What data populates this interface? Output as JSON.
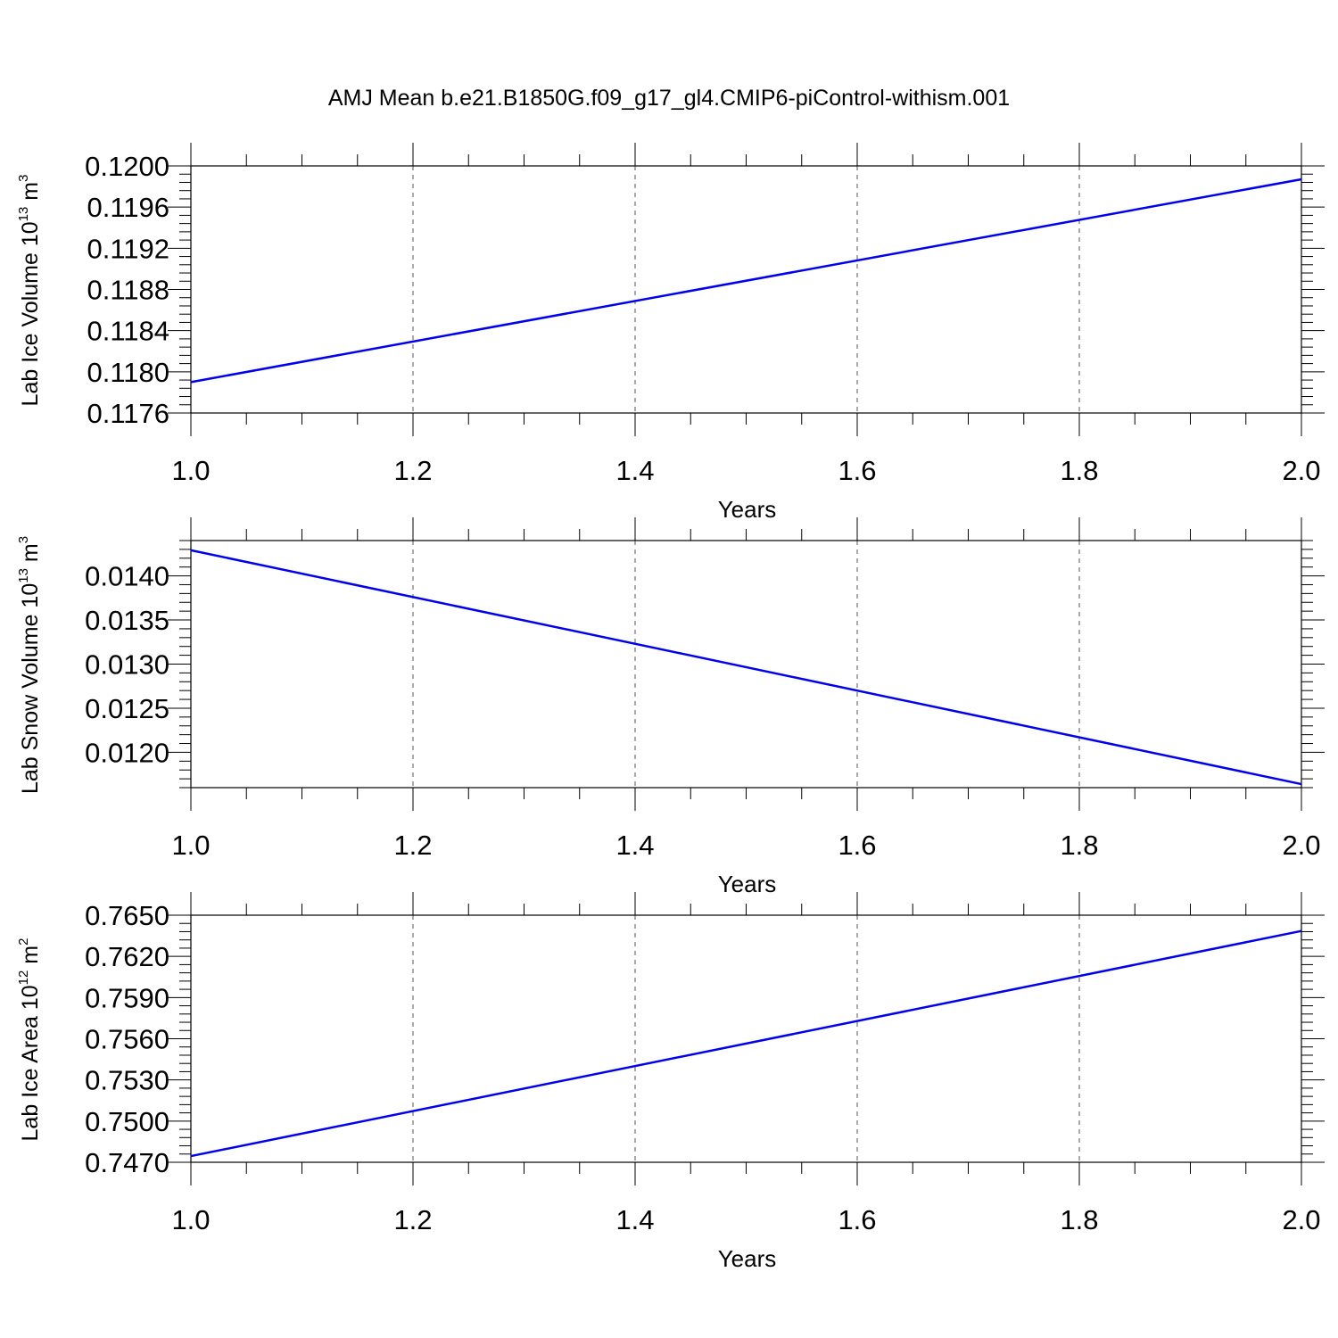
{
  "title": "AMJ Mean b.e21.B1850G.f09_g17_gl4.CMIP6-piControl-withism.001",
  "colors": {
    "series": "#0000ee",
    "axis": "#000000",
    "grid": "#555555"
  },
  "chart_data": [
    {
      "type": "line",
      "title": "",
      "ylabel": "Lab Ice Volume 10",
      "ylabel_exp": "13",
      "ylabel_unit": " m",
      "ylabel_unit_exp": "3",
      "xlabel": "Years",
      "xlim": [
        1.0,
        2.0
      ],
      "ylim": [
        0.1176,
        0.12
      ],
      "xticks": [
        "1.0",
        "1.2",
        "1.4",
        "1.6",
        "1.8",
        "2.0"
      ],
      "yticks": [
        "0.1176",
        "0.1180",
        "0.1184",
        "0.1188",
        "0.1192",
        "0.1196",
        "0.1200"
      ],
      "grid": "vertical dashed",
      "series": [
        {
          "x": [
            1.0,
            2.0
          ],
          "y": [
            0.1179,
            0.11987
          ]
        }
      ]
    },
    {
      "type": "line",
      "title": "",
      "ylabel": "Lab Snow Volume 10",
      "ylabel_exp": "13",
      "ylabel_unit": " m",
      "ylabel_unit_exp": "3",
      "xlabel": "Years",
      "xlim": [
        1.0,
        2.0
      ],
      "ylim": [
        0.0116,
        0.0144
      ],
      "xticks": [
        "1.0",
        "1.2",
        "1.4",
        "1.6",
        "1.8",
        "2.0"
      ],
      "yticks": [
        "0.0120",
        "0.0125",
        "0.0130",
        "0.0135",
        "0.0140"
      ],
      "grid": "vertical dashed",
      "series": [
        {
          "x": [
            1.0,
            2.0
          ],
          "y": [
            0.01429,
            0.01164
          ]
        }
      ]
    },
    {
      "type": "line",
      "title": "",
      "ylabel": "Lab Ice Area 10",
      "ylabel_exp": "12",
      "ylabel_unit": " m",
      "ylabel_unit_exp": "2",
      "xlabel": "Years",
      "xlim": [
        1.0,
        2.0
      ],
      "ylim": [
        0.747,
        0.765
      ],
      "xticks": [
        "1.0",
        "1.2",
        "1.4",
        "1.6",
        "1.8",
        "2.0"
      ],
      "yticks": [
        "0.7470",
        "0.7500",
        "0.7530",
        "0.7560",
        "0.7590",
        "0.7620",
        "0.7650"
      ],
      "grid": "vertical dashed",
      "series": [
        {
          "x": [
            1.0,
            2.0
          ],
          "y": [
            0.74745,
            0.76385
          ]
        }
      ]
    }
  ]
}
